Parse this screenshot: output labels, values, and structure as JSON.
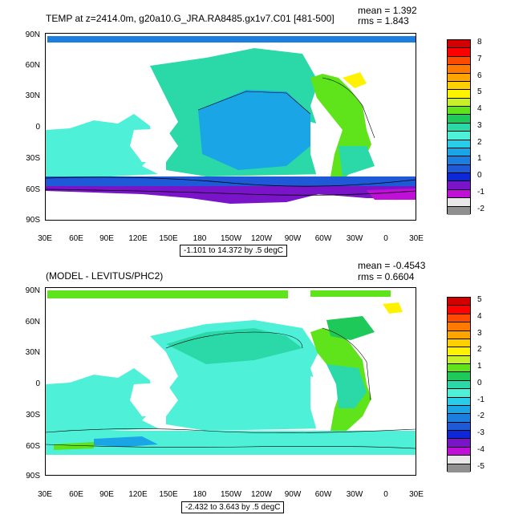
{
  "panels": [
    {
      "title": "TEMP at z=2414.0m, g20a10.G_JRA.RA8485.gx1v7.C01 [481-500]",
      "mean": "mean = 1.392",
      "rms": "rms = 1.843",
      "range": "-1.101 to 14.372 by .5 degC",
      "lat_labels": [
        "90N",
        "60N",
        "30N",
        "0",
        "30S",
        "60S",
        "90S"
      ],
      "lon_labels": [
        "30E",
        "60E",
        "90E",
        "120E",
        "150E",
        "180",
        "150W",
        "120W",
        "90W",
        "60W",
        "30W",
        "0",
        "30E"
      ],
      "colorbar": {
        "labels": [
          "8",
          "7",
          "6",
          "5",
          "4",
          "3",
          "2",
          "1",
          "0",
          "-1",
          "-2"
        ],
        "colors": [
          "#d40000",
          "#ff0000",
          "#ff4a00",
          "#ff7a00",
          "#ffa500",
          "#ffd000",
          "#fff200",
          "#c8f02a",
          "#5fe31a",
          "#1ec95a",
          "#2bd9a8",
          "#4ff0d8",
          "#28cdea",
          "#1aa6e6",
          "#1c7fe0",
          "#1e5ad8",
          "#0c28d8",
          "#7a14c8",
          "#c010d8",
          "#e8e8e8",
          "#909090"
        ]
      }
    },
    {
      "title": "(MODEL - LEVITUS/PHC2)",
      "mean": "mean = -0.4543",
      "rms": "rms = 0.6604",
      "range": "-2.432 to 3.643 by .5 degC",
      "lat_labels": [
        "90N",
        "60N",
        "30N",
        "0",
        "30S",
        "60S",
        "90S"
      ],
      "lon_labels": [
        "30E",
        "60E",
        "90E",
        "120E",
        "150E",
        "180",
        "150W",
        "120W",
        "90W",
        "60W",
        "30W",
        "0",
        "30E"
      ],
      "colorbar": {
        "labels": [
          "5",
          "4",
          "3",
          "2",
          "1",
          "0",
          "-1",
          "-2",
          "-3",
          "-4",
          "-5"
        ],
        "colors": [
          "#d40000",
          "#ff0000",
          "#ff4a00",
          "#ff7a00",
          "#ffa500",
          "#ffd000",
          "#fff200",
          "#c8f02a",
          "#5fe31a",
          "#1ec95a",
          "#2bd9a8",
          "#4ff0d8",
          "#28cdea",
          "#1aa6e6",
          "#1c7fe0",
          "#1e5ad8",
          "#0c28d8",
          "#7a14c8",
          "#c010d8",
          "#e8e8e8",
          "#909090"
        ]
      }
    }
  ]
}
